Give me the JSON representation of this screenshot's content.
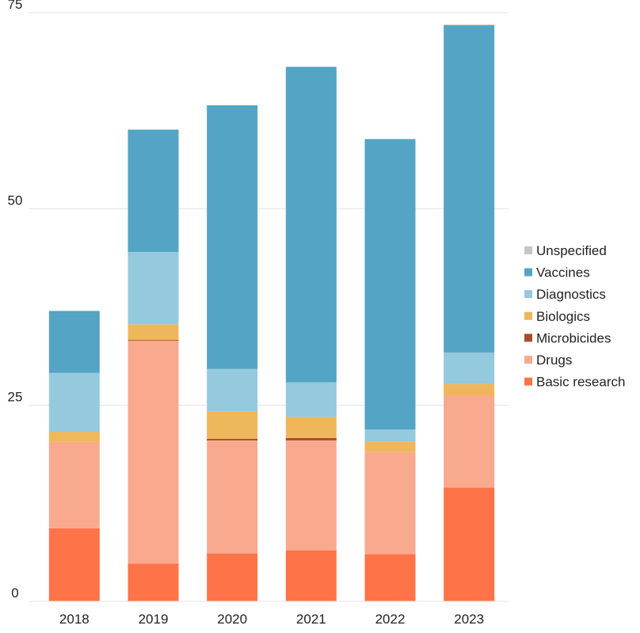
{
  "chart_data": {
    "type": "bar",
    "stacked": true,
    "title": "",
    "xlabel": "",
    "ylabel": "",
    "ylim": [
      0,
      75
    ],
    "yticks": [
      0,
      25,
      50,
      75
    ],
    "grid": true,
    "legend_position": "right",
    "categories": [
      "2018",
      "2019",
      "2020",
      "2021",
      "2022",
      "2023"
    ],
    "series": [
      {
        "name": "Basic research",
        "color": "#ff7349",
        "values": [
          9.3,
          4.8,
          6.1,
          6.5,
          6.0,
          14.5
        ]
      },
      {
        "name": "Drugs",
        "color": "#f9a98e",
        "values": [
          11.0,
          28.4,
          14.4,
          14.0,
          13.0,
          11.7
        ]
      },
      {
        "name": "Microbicides",
        "color": "#a94a2e",
        "values": [
          0.0,
          0.1,
          0.2,
          0.3,
          0.0,
          0.0
        ]
      },
      {
        "name": "Biologics",
        "color": "#efb75b",
        "values": [
          1.3,
          2.0,
          3.5,
          2.7,
          1.3,
          1.5
        ]
      },
      {
        "name": "Diagnostics",
        "color": "#95c9dd",
        "values": [
          7.5,
          9.2,
          5.4,
          4.4,
          1.6,
          4.0
        ]
      },
      {
        "name": "Vaccines",
        "color": "#54a4c5",
        "values": [
          7.9,
          15.6,
          33.6,
          40.2,
          37.0,
          41.7
        ]
      },
      {
        "name": "Unspecified",
        "color": "#c6c6c6",
        "values": [
          0.0,
          0.0,
          0.0,
          0.0,
          0.0,
          0.1
        ]
      }
    ]
  }
}
